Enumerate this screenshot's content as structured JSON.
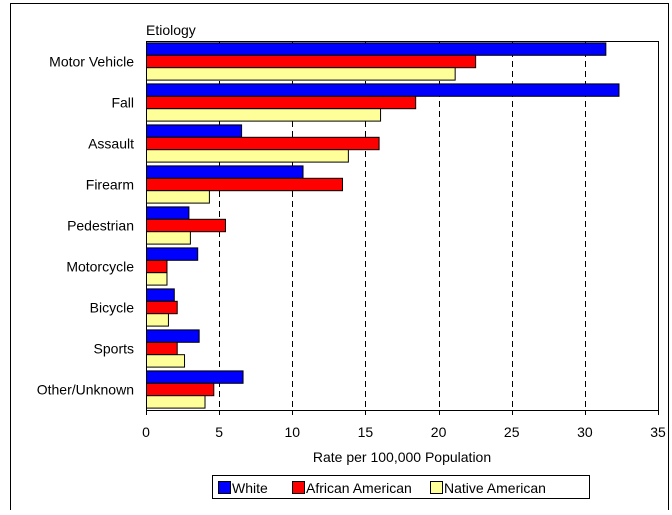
{
  "chart_data": {
    "type": "bar",
    "orientation": "horizontal",
    "title": "",
    "category_axis_title": "Etiology",
    "xlabel": "Rate per 100,000 Population",
    "xlim": [
      0,
      35
    ],
    "xticks": [
      0,
      5,
      10,
      15,
      20,
      25,
      30,
      35
    ],
    "grid": "vertical dashed",
    "legend_position": "bottom",
    "categories": [
      "Motor Vehicle",
      "Fall",
      "Assault",
      "Firearm",
      "Pedestrian",
      "Motorcycle",
      "Bicycle",
      "Sports",
      "Other/Unknown"
    ],
    "series": [
      {
        "name": "White",
        "color": "#0000ff",
        "values": [
          31.4,
          32.3,
          6.5,
          10.7,
          2.9,
          3.5,
          1.9,
          3.6,
          6.6
        ]
      },
      {
        "name": "African American",
        "color": "#ff0000",
        "values": [
          22.5,
          18.4,
          15.9,
          13.4,
          5.4,
          1.4,
          2.1,
          2.1,
          4.6
        ]
      },
      {
        "name": "Native American",
        "color": "#ffff99",
        "values": [
          21.1,
          16.0,
          13.8,
          4.3,
          3.0,
          1.4,
          1.5,
          2.6,
          4.0
        ]
      }
    ]
  }
}
